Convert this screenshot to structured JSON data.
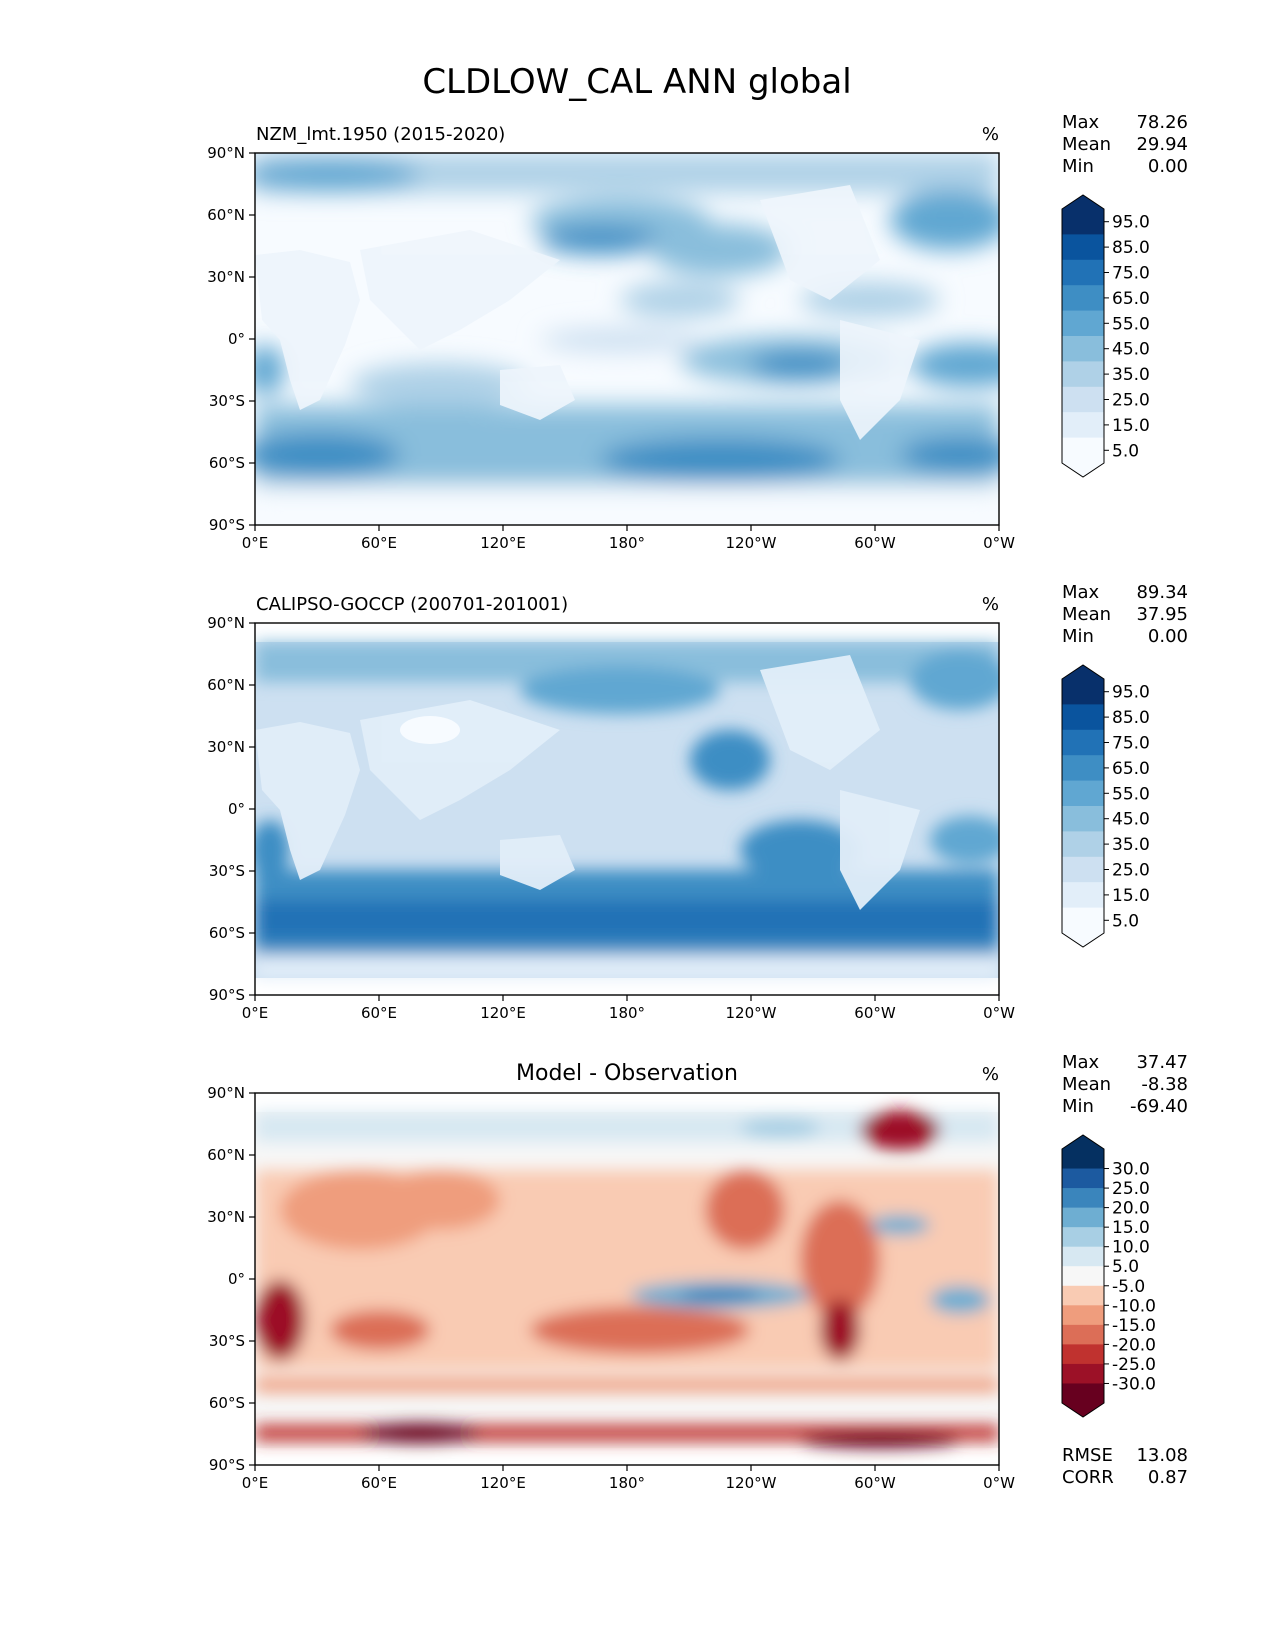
{
  "figure": {
    "title": "CLDLOW_CAL ANN global"
  },
  "lon_ticks": [
    "0°E",
    "60°E",
    "120°E",
    "180°",
    "120°W",
    "60°W",
    "0°W"
  ],
  "lat_ticks": [
    "90°N",
    "60°N",
    "30°N",
    "0°",
    "30°S",
    "60°S",
    "90°S"
  ],
  "panels": [
    {
      "title_left": "NZM_lmt.1950 (2015-2020)",
      "title_center": "",
      "units": "%",
      "stats": [
        {
          "label": "Max",
          "value": "78.26"
        },
        {
          "label": "Mean",
          "value": "29.94"
        },
        {
          "label": "Min",
          "value": "0.00"
        }
      ],
      "colorbar": {
        "labels": [
          "95.0",
          "85.0",
          "75.0",
          "65.0",
          "55.0",
          "45.0",
          "35.0",
          "25.0",
          "15.0",
          "5.0"
        ],
        "colors": [
          "#f7fbff",
          "#e2eef9",
          "#cde0f1",
          "#afd1e7",
          "#89bedc",
          "#60a7d2",
          "#3e8ec4",
          "#2172b6",
          "#0a549e",
          "#08306b"
        ]
      },
      "footer": []
    },
    {
      "title_left": "CALIPSO-GOCCP (200701-201001)",
      "title_center": "",
      "units": "%",
      "stats": [
        {
          "label": "Max",
          "value": "89.34"
        },
        {
          "label": "Mean",
          "value": "37.95"
        },
        {
          "label": "Min",
          "value": "0.00"
        }
      ],
      "colorbar": {
        "labels": [
          "95.0",
          "85.0",
          "75.0",
          "65.0",
          "55.0",
          "45.0",
          "35.0",
          "25.0",
          "15.0",
          "5.0"
        ],
        "colors": [
          "#f7fbff",
          "#e2eef9",
          "#cde0f1",
          "#afd1e7",
          "#89bedc",
          "#60a7d2",
          "#3e8ec4",
          "#2172b6",
          "#0a549e",
          "#08306b"
        ]
      },
      "footer": []
    },
    {
      "title_left": "",
      "title_center": "Model - Observation",
      "units": "%",
      "stats": [
        {
          "label": "Max",
          "value": "37.47"
        },
        {
          "label": "Mean",
          "value": "-8.38"
        },
        {
          "label": "Min",
          "value": "-69.40"
        }
      ],
      "colorbar": {
        "labels": [
          "30.0",
          "25.0",
          "20.0",
          "15.0",
          "10.0",
          "5.0",
          "-5.0",
          "-10.0",
          "-15.0",
          "-20.0",
          "-25.0",
          "-30.0"
        ],
        "colors": [
          "#67001f",
          "#9c1127",
          "#c0322f",
          "#dc6e57",
          "#ef9d7d",
          "#f9cbb3",
          "#f7f7f7",
          "#d7e8f2",
          "#a8cfe4",
          "#6eaed2",
          "#3a85bc",
          "#1c5aa0",
          "#053061"
        ]
      },
      "footer": [
        {
          "label": "RMSE",
          "value": "13.08"
        },
        {
          "label": "CORR",
          "value": "0.87"
        }
      ]
    }
  ]
}
